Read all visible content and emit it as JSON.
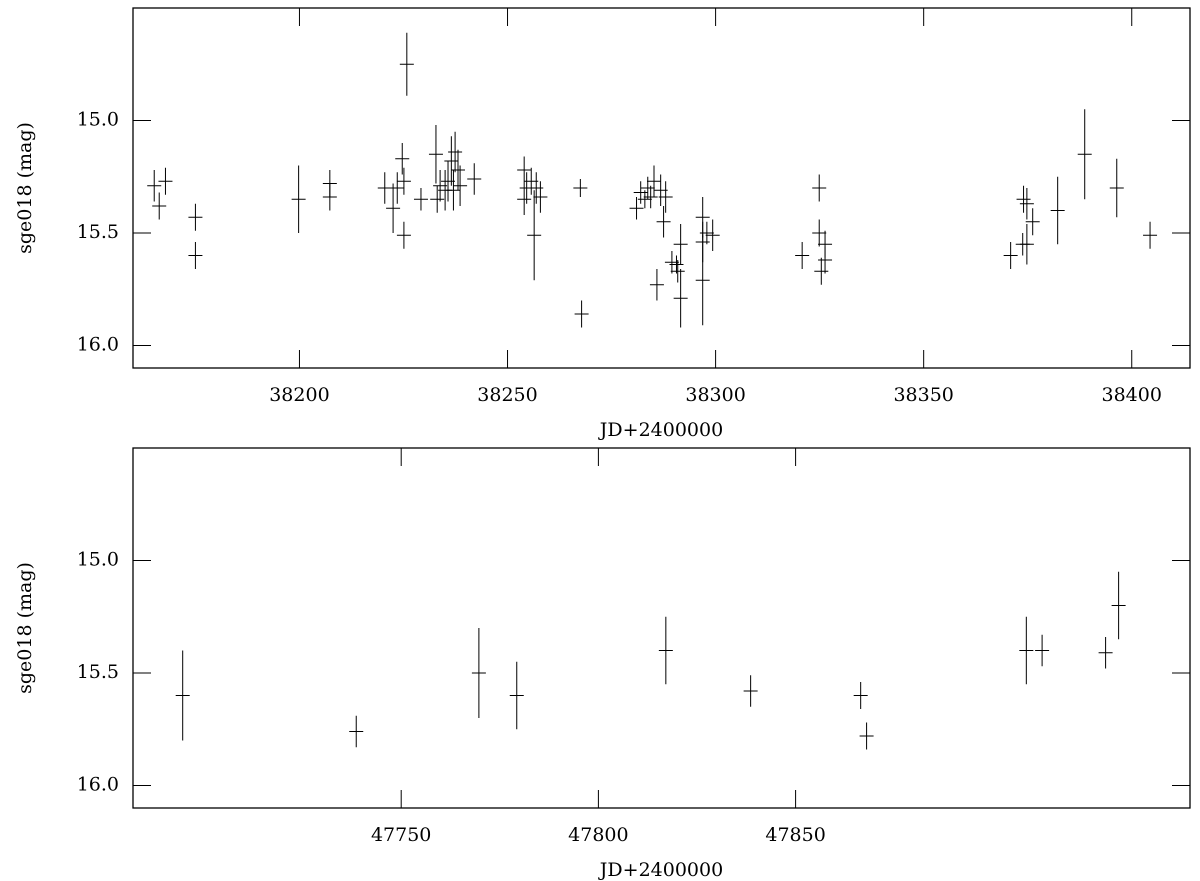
{
  "chart_data": [
    {
      "type": "scatter",
      "xlabel": "JD+2400000",
      "ylabel": "sge018 (mag)",
      "color": "#000000",
      "xlim": [
        38160,
        38414
      ],
      "xticks": [
        38200,
        38250,
        38300,
        38350,
        38400
      ],
      "ylim": [
        16.1,
        14.5
      ],
      "yticks": [
        {
          "value": 15,
          "label": "15.0"
        },
        {
          "value": 15.5,
          "label": "15.5"
        },
        {
          "value": 16,
          "label": "16.0"
        }
      ],
      "x": [
        38165.1,
        38166.3,
        38167.8,
        38175.0,
        38175.0,
        38199.8,
        38207.3,
        38207.3,
        38220.5,
        38222.5,
        38223.5,
        38224.7,
        38225.1,
        38225.1,
        38225.8,
        38229.2,
        38232.8,
        38233.1,
        38233.8,
        38235.0,
        38235.7,
        38236.5,
        38237.0,
        38237.4,
        38238.1,
        38238.6,
        38242.0,
        38254.0,
        38254.0,
        38254.6,
        38255.7,
        38256.4,
        38256.9,
        38257.9,
        38267.5,
        38267.8,
        38281.0,
        38282.0,
        38283.0,
        38283.7,
        38284.4,
        38285.2,
        38285.9,
        38286.8,
        38287.5,
        38288.0,
        38289.5,
        38290.6,
        38290.9,
        38291.6,
        38291.6,
        38296.9,
        38296.9,
        38296.9,
        38297.9,
        38299.3,
        38320.8,
        38324.9,
        38324.9,
        38325.4,
        38326.3,
        38326.3,
        38370.9,
        38373.8,
        38374.0,
        38374.8,
        38374.8,
        38376.2,
        38382.2,
        38388.7,
        38396.4,
        38404.4
      ],
      "values": [
        15.29,
        15.38,
        15.27,
        15.43,
        15.6,
        15.35,
        15.28,
        15.34,
        15.3,
        15.39,
        15.3,
        15.17,
        15.51,
        15.27,
        14.75,
        15.35,
        15.15,
        15.35,
        15.29,
        15.31,
        15.27,
        15.18,
        15.31,
        15.14,
        15.22,
        15.29,
        15.26,
        15.22,
        15.35,
        15.3,
        15.27,
        15.51,
        15.3,
        15.34,
        15.3,
        15.86,
        15.39,
        15.32,
        15.35,
        15.3,
        15.34,
        15.27,
        15.73,
        15.31,
        15.45,
        15.34,
        15.63,
        15.64,
        15.67,
        15.55,
        15.79,
        15.71,
        15.43,
        15.54,
        15.5,
        15.51,
        15.6,
        15.3,
        15.5,
        15.67,
        15.55,
        15.62,
        15.6,
        15.55,
        15.35,
        15.55,
        15.37,
        15.45,
        15.4,
        15.15,
        15.3,
        15.51
      ],
      "errors": [
        0.07,
        0.06,
        0.06,
        0.06,
        0.06,
        0.15,
        0.06,
        0.06,
        0.07,
        0.11,
        0.07,
        0.07,
        0.06,
        0.06,
        0.14,
        0.05,
        0.13,
        0.06,
        0.07,
        0.09,
        0.09,
        0.11,
        0.09,
        0.09,
        0.09,
        0.09,
        0.07,
        0.06,
        0.07,
        0.07,
        0.06,
        0.2,
        0.07,
        0.07,
        0.04,
        0.06,
        0.05,
        0.05,
        0.04,
        0.05,
        0.05,
        0.07,
        0.07,
        0.07,
        0.07,
        0.07,
        0.05,
        0.04,
        0.05,
        0.09,
        0.13,
        0.2,
        0.09,
        0.09,
        0.05,
        0.07,
        0.06,
        0.06,
        0.06,
        0.06,
        0.06,
        0.06,
        0.06,
        0.05,
        0.06,
        0.09,
        0.07,
        0.06,
        0.15,
        0.2,
        0.13,
        0.06
      ]
    },
    {
      "type": "scatter",
      "xlabel": "JD+2400000",
      "ylabel": "sge018 (mag)",
      "color": "#000000",
      "xlim": [
        47682,
        47950
      ],
      "xticks": [
        47750,
        47800,
        47850
      ],
      "ylim": [
        16.1,
        14.5
      ],
      "yticks": [
        {
          "value": 15,
          "label": "15.0"
        },
        {
          "value": 15.5,
          "label": "15.5"
        },
        {
          "value": 16,
          "label": "16.0"
        }
      ],
      "x": [
        47694.6,
        47738.6,
        47769.7,
        47779.3,
        47817.1,
        47838.6,
        47866.5,
        47868.0,
        47908.5,
        47912.5,
        47928.6,
        47931.9
      ],
      "values": [
        15.6,
        15.76,
        15.5,
        15.6,
        15.4,
        15.58,
        15.6,
        15.78,
        15.4,
        15.4,
        15.41,
        15.2
      ],
      "errors": [
        0.2,
        0.07,
        0.2,
        0.15,
        0.15,
        0.07,
        0.06,
        0.06,
        0.15,
        0.07,
        0.07,
        0.15
      ]
    }
  ]
}
